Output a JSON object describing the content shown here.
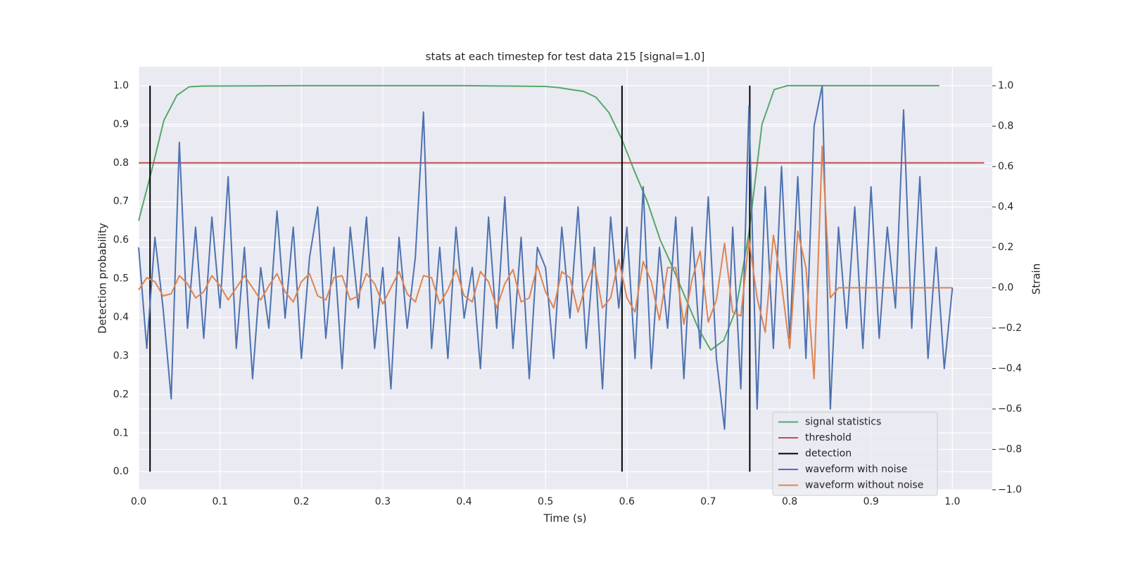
{
  "chart_data": {
    "type": "line",
    "title": "stats at each timestep for test data 215 [signal=1.0]",
    "x_label": "Time (s)",
    "y_label": "Detection probability",
    "y2_label": "Strain",
    "xlim": [
      0.0,
      1.049
    ],
    "ylim": [
      -0.047,
      1.049
    ],
    "y2lim": [
      -1.0,
      1.094
    ],
    "xticks": [
      {
        "value": 0,
        "label": "0.0"
      },
      0.1,
      0.2,
      0.3,
      0.4,
      0.5,
      0.6,
      0.7,
      0.8,
      0.9,
      {
        "value": 1,
        "label": "1.0"
      }
    ],
    "yticks": [
      {
        "value": 0,
        "label": "0.0"
      },
      0.1,
      0.2,
      0.3,
      0.4,
      0.5,
      0.6,
      0.7,
      0.8,
      0.9,
      {
        "value": 1,
        "label": "1.0"
      }
    ],
    "y2ticks": [
      {
        "value": -1,
        "label": "−1.0"
      },
      {
        "value": -0.8,
        "label": "−0.8"
      },
      {
        "value": -0.6,
        "label": "−0.6"
      },
      {
        "value": -0.4,
        "label": "−0.4"
      },
      {
        "value": -0.2,
        "label": "−0.2"
      },
      {
        "value": 0,
        "label": "0.0"
      },
      0.2,
      0.4,
      0.6,
      0.8,
      {
        "value": 1,
        "label": "1.0"
      }
    ],
    "grid": true,
    "legend": "lower right",
    "x": [
      0.0,
      0.01,
      0.02,
      0.03,
      0.04,
      0.05,
      0.06,
      0.07,
      0.08,
      0.09,
      0.1,
      0.11,
      0.12,
      0.13,
      0.14,
      0.15,
      0.16,
      0.17,
      0.18,
      0.19,
      0.2,
      0.21,
      0.22,
      0.23,
      0.24,
      0.25,
      0.26,
      0.27,
      0.28,
      0.29,
      0.3,
      0.31,
      0.32,
      0.33,
      0.34,
      0.35,
      0.36,
      0.37,
      0.38,
      0.39,
      0.4,
      0.41,
      0.42,
      0.43,
      0.44,
      0.45,
      0.46,
      0.47,
      0.48,
      0.49,
      0.5,
      0.51,
      0.52,
      0.53,
      0.54,
      0.55,
      0.56,
      0.57,
      0.58,
      0.59,
      0.6,
      0.61,
      0.62,
      0.63,
      0.64,
      0.65,
      0.66,
      0.67,
      0.68,
      0.69,
      0.7,
      0.71,
      0.72,
      0.73,
      0.74,
      0.75,
      0.76,
      0.77,
      0.78,
      0.79,
      0.8,
      0.81,
      0.82,
      0.83,
      0.84,
      0.85,
      0.86,
      0.87,
      0.88,
      0.89,
      0.9,
      0.91,
      0.92,
      0.93,
      0.94,
      0.95,
      0.96,
      0.97,
      0.98,
      0.99,
      1.0
    ],
    "series": [
      {
        "name": "signal statistics",
        "color": "#55a868",
        "style": "line",
        "x": [
          0.0,
          0.016,
          0.031,
          0.047,
          0.062,
          0.078,
          0.2,
          0.3,
          0.4,
          0.5,
          0.516,
          0.531,
          0.547,
          0.562,
          0.578,
          0.594,
          0.609,
          0.625,
          0.641,
          0.656,
          0.672,
          0.688,
          0.703,
          0.719,
          0.734,
          0.75,
          0.766,
          0.781,
          0.797,
          0.9,
          0.984
        ],
        "values": [
          0.65,
          0.78,
          0.91,
          0.975,
          0.997,
          0.999,
          1.0,
          1.0,
          1.0,
          0.998,
          0.995,
          0.99,
          0.985,
          0.97,
          0.93,
          0.86,
          0.78,
          0.7,
          0.6,
          0.53,
          0.45,
          0.37,
          0.315,
          0.34,
          0.42,
          0.62,
          0.9,
          0.99,
          1.0,
          1.0,
          1.0
        ]
      },
      {
        "name": "threshold",
        "color": "#c44e52",
        "style": "line",
        "x": [
          0.0,
          1.039
        ],
        "values": [
          0.8,
          0.8
        ]
      },
      {
        "name": "detection",
        "color": "#000000",
        "style": "vline",
        "x": [
          0.014,
          0.594,
          0.751
        ],
        "values": [
          1.0,
          1.0,
          1.0
        ]
      },
      {
        "name": "waveform with noise",
        "color": "#4c72b0",
        "style": "line",
        "axis": "y2",
        "values": [
          0.2,
          -0.3,
          0.25,
          -0.1,
          -0.55,
          0.72,
          -0.2,
          0.3,
          -0.25,
          0.35,
          -0.1,
          0.55,
          -0.3,
          0.2,
          -0.45,
          0.1,
          -0.2,
          0.38,
          -0.15,
          0.3,
          -0.35,
          0.15,
          0.4,
          -0.25,
          0.2,
          -0.4,
          0.3,
          -0.1,
          0.35,
          -0.3,
          0.1,
          -0.5,
          0.25,
          -0.2,
          0.15,
          0.87,
          -0.3,
          0.2,
          -0.35,
          0.3,
          -0.15,
          0.1,
          -0.4,
          0.35,
          -0.2,
          0.45,
          -0.3,
          0.25,
          -0.45,
          0.2,
          0.1,
          -0.35,
          0.3,
          -0.15,
          0.4,
          -0.3,
          0.2,
          -0.5,
          0.35,
          -0.1,
          0.3,
          -0.35,
          0.5,
          -0.4,
          0.2,
          -0.2,
          0.35,
          -0.45,
          0.3,
          -0.3,
          0.45,
          -0.35,
          -0.7,
          0.3,
          -0.5,
          0.9,
          -0.6,
          0.5,
          -0.3,
          0.6,
          -0.25,
          0.55,
          -0.35,
          0.8,
          1.0,
          -0.6,
          0.3,
          -0.2,
          0.4,
          -0.3,
          0.5,
          -0.25,
          0.3,
          -0.1,
          0.88,
          -0.2,
          0.55,
          -0.35,
          0.2,
          -0.4,
          0.0
        ]
      },
      {
        "name": "waveform without noise",
        "color": "#dd8452",
        "style": "line",
        "axis": "y2",
        "values": [
          -0.01,
          0.05,
          0.03,
          -0.04,
          -0.03,
          0.06,
          0.02,
          -0.05,
          -0.02,
          0.06,
          0.01,
          -0.06,
          0.0,
          0.06,
          0.0,
          -0.06,
          0.01,
          0.07,
          -0.02,
          -0.07,
          0.03,
          0.07,
          -0.04,
          -0.06,
          0.05,
          0.06,
          -0.06,
          -0.04,
          0.07,
          0.02,
          -0.08,
          0.0,
          0.08,
          -0.03,
          -0.07,
          0.06,
          0.05,
          -0.08,
          -0.01,
          0.09,
          -0.04,
          -0.07,
          0.08,
          0.03,
          -0.1,
          0.02,
          0.09,
          -0.07,
          -0.05,
          0.11,
          -0.02,
          -0.1,
          0.08,
          0.05,
          -0.12,
          0.02,
          0.12,
          -0.1,
          -0.05,
          0.14,
          -0.05,
          -0.12,
          0.13,
          0.03,
          -0.16,
          0.1,
          0.1,
          -0.18,
          0.04,
          0.18,
          -0.17,
          -0.06,
          0.22,
          -0.12,
          -0.14,
          0.24,
          -0.05,
          -0.22,
          0.26,
          0.02,
          -0.3,
          0.28,
          0.1,
          -0.45,
          0.7,
          -0.05,
          0.0,
          0.0,
          0.0,
          0.0,
          0.0,
          0.0,
          0.0,
          0.0,
          0.0,
          0.0,
          0.0,
          0.0,
          0.0,
          0.0,
          0.0
        ]
      }
    ]
  }
}
